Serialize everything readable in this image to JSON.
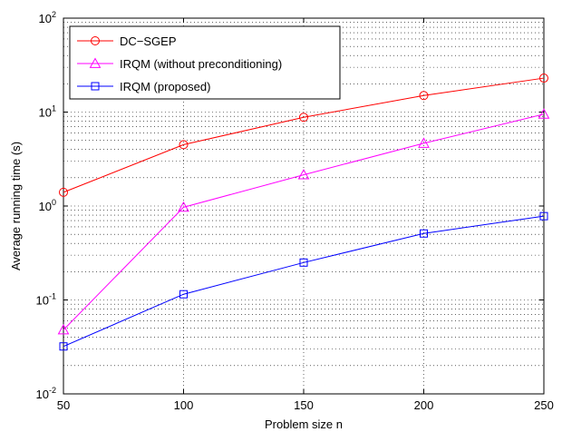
{
  "chart_data": {
    "type": "line",
    "xlabel": "Problem size n",
    "ylabel": "Average running time (s)",
    "x": [
      50,
      100,
      150,
      200,
      250
    ],
    "xlim": [
      50,
      250
    ],
    "ylim": [
      0.01,
      100
    ],
    "yscale": "log",
    "x_ticks": [
      "50",
      "100",
      "150",
      "200",
      "250"
    ],
    "y_ticks": [
      {
        "base": "10",
        "exp": "-2",
        "value": 0.01
      },
      {
        "base": "10",
        "exp": "-1",
        "value": 0.1
      },
      {
        "base": "10",
        "exp": "0",
        "value": 1
      },
      {
        "base": "10",
        "exp": "1",
        "value": 10
      },
      {
        "base": "10",
        "exp": "2",
        "value": 100
      }
    ],
    "grid": true,
    "legend_position": "top-left",
    "series": [
      {
        "name": "DC−SGEP",
        "color": "#ff0000",
        "marker": "circle",
        "values": [
          1.4,
          4.5,
          8.8,
          15.0,
          23.0
        ]
      },
      {
        "name": "IRQM (without preconditioning)",
        "color": "#ff00ff",
        "marker": "triangle",
        "values": [
          0.048,
          0.97,
          2.15,
          4.65,
          9.5
        ]
      },
      {
        "name": "IRQM (proposed)",
        "color": "#0000ff",
        "marker": "square",
        "values": [
          0.032,
          0.115,
          0.25,
          0.51,
          0.78
        ]
      }
    ]
  }
}
